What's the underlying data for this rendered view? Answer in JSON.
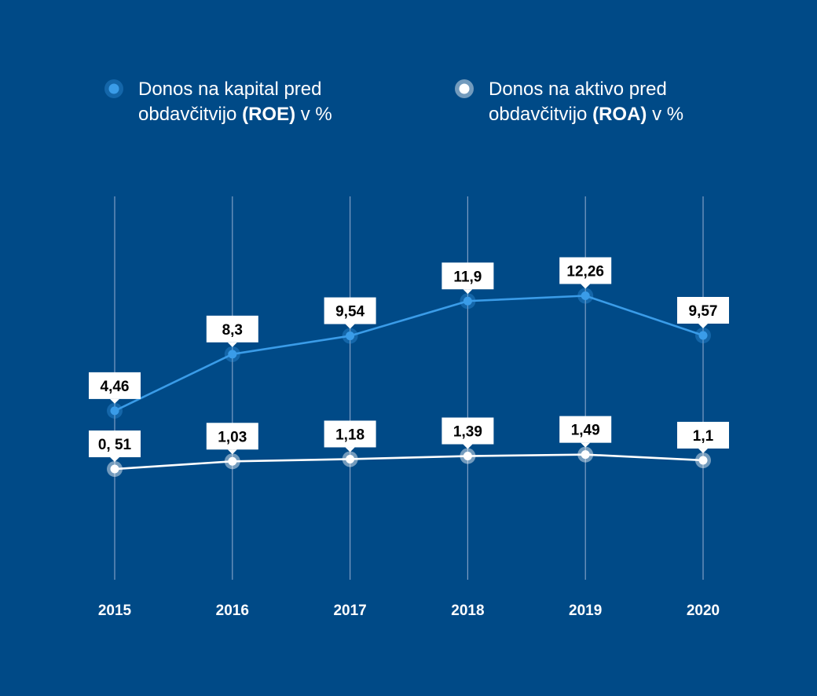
{
  "colors": {
    "background": "#004a87",
    "roe": "#3a9ce8",
    "roa": "#ffffff",
    "gridline": "#7e9ec4",
    "label_box": "#ffffff",
    "label_text": "#000000"
  },
  "legend": {
    "roe": {
      "line1": "Donos na kapital pred",
      "line2_prefix": "obdavčitvijo ",
      "line2_bold": "(ROE)",
      "line2_suffix": " v %"
    },
    "roa": {
      "line1": "Donos na aktivo pred",
      "line2_prefix": "obdavčitvijo ",
      "line2_bold": "(ROA)",
      "line2_suffix": " v %"
    }
  },
  "chart_data": {
    "type": "line",
    "title": "",
    "xlabel": "",
    "ylabel": "",
    "ylim": [
      -7,
      19
    ],
    "grid": "vertical",
    "legend_position": "top",
    "categories": [
      "2015",
      "2016",
      "2017",
      "2018",
      "2019",
      "2020"
    ],
    "series": [
      {
        "name": "Donos na kapital pred obdavčitvijo (ROE) v %",
        "key": "roe",
        "values": [
          4.46,
          8.3,
          9.54,
          11.9,
          12.26,
          9.57
        ],
        "labels": [
          "4,46",
          "8,3",
          "9,54",
          "11,9",
          "12,26",
          "9,57"
        ]
      },
      {
        "name": "Donos na aktivo pred obdavčitvijo (ROA) v %",
        "key": "roa",
        "values": [
          0.51,
          1.03,
          1.18,
          1.39,
          1.49,
          1.1
        ],
        "labels": [
          "0, 51",
          "1,03",
          "1,18",
          "1,39",
          "1,49",
          "1,1"
        ]
      }
    ]
  }
}
